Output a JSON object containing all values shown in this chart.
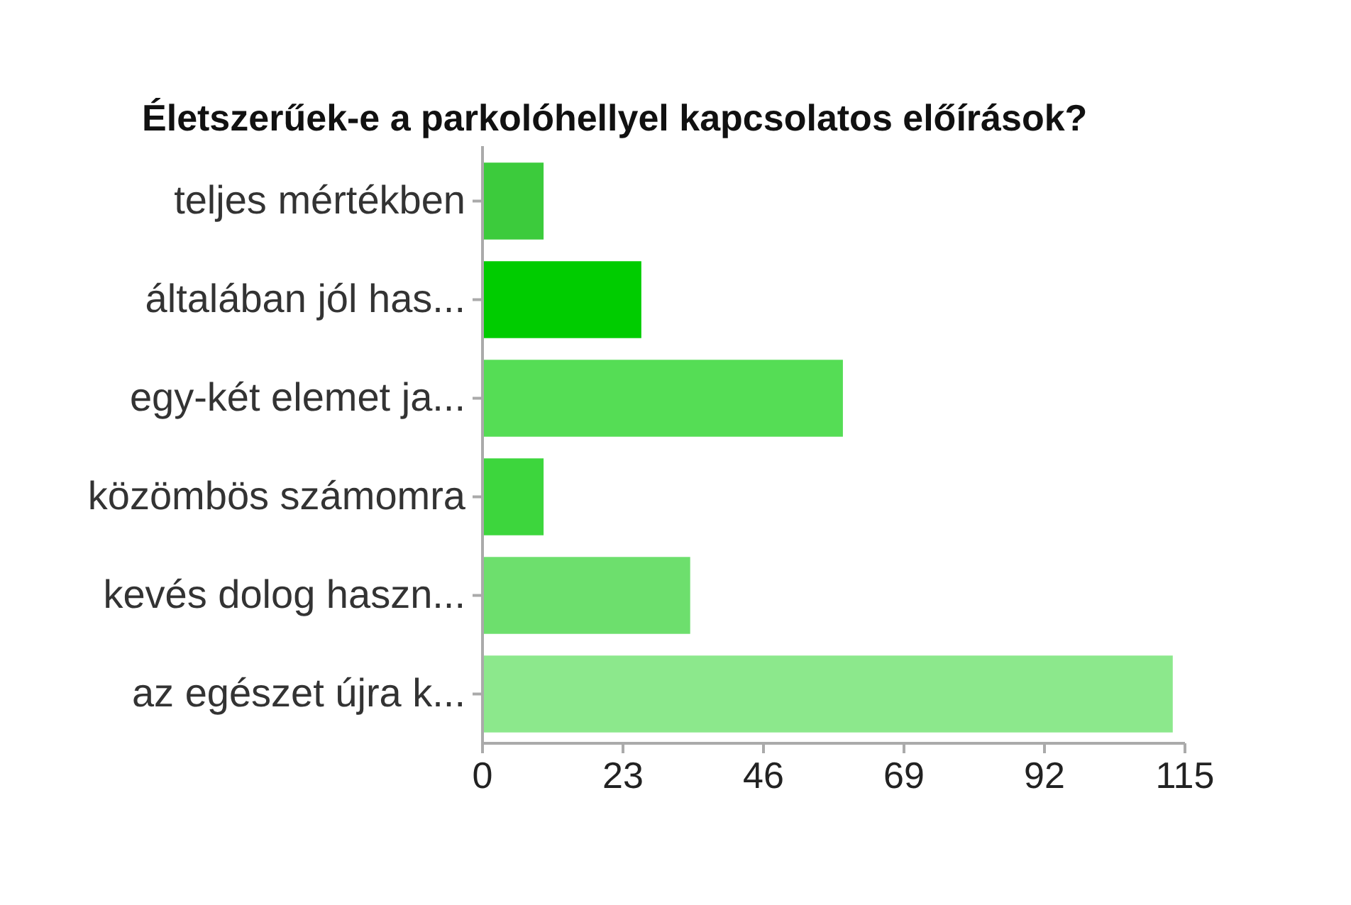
{
  "chart_data": {
    "type": "bar",
    "orientation": "horizontal",
    "title": "Életszerűek-e a parkolóhellyel kapcsolatos előírások?",
    "categories": [
      "teljes mértékben",
      "általában jól has...",
      "egy-két elemet ja...",
      "közömbös számomra",
      "kevés dolog haszn...",
      "az egészet újra k..."
    ],
    "values": [
      10,
      26,
      59,
      10,
      34,
      113
    ],
    "colors": [
      "#3ccb3c",
      "#00cc00",
      "#55dd55",
      "#3dd63d",
      "#6ddf6d",
      "#8ce88c"
    ],
    "xlim": [
      0,
      115
    ],
    "xticks": [
      0,
      23,
      46,
      69,
      92,
      115
    ]
  }
}
